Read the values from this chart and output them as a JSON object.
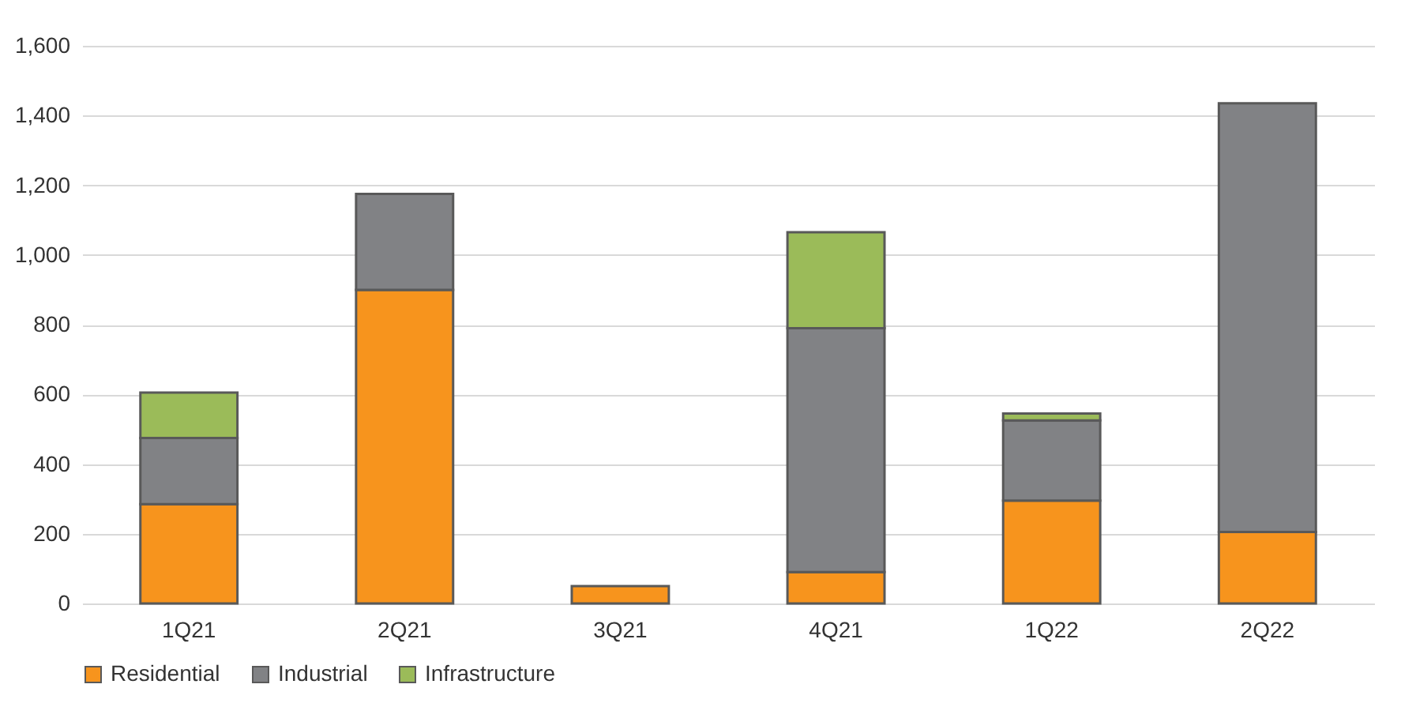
{
  "chart_data": {
    "type": "bar",
    "stacked": true,
    "categories": [
      "1Q21",
      "2Q21",
      "3Q21",
      "4Q21",
      "1Q22",
      "2Q22"
    ],
    "series": [
      {
        "name": "Residential",
        "color": "#f7941d",
        "values": [
          285,
          900,
          50,
          90,
          295,
          205
        ]
      },
      {
        "name": "Industrial",
        "color": "#818285",
        "values": [
          190,
          275,
          null,
          700,
          230,
          1230
        ]
      },
      {
        "name": "Infrastructure",
        "color": "#9bbb59",
        "values": [
          130,
          null,
          null,
          275,
          20,
          null
        ]
      }
    ],
    "ylim": [
      0,
      1600
    ],
    "yticks": [
      {
        "value": 0,
        "label": "0"
      },
      {
        "value": 200,
        "label": "200"
      },
      {
        "value": 400,
        "label": "400"
      },
      {
        "value": 600,
        "label": "600"
      },
      {
        "value": 800,
        "label": "800"
      },
      {
        "value": 1000,
        "label": "1,000"
      },
      {
        "value": 1200,
        "label": "1,200"
      },
      {
        "value": 1400,
        "label": "1,400"
      },
      {
        "value": 1600,
        "label": "1,600"
      }
    ],
    "grid": "y",
    "legend": "bottom"
  }
}
